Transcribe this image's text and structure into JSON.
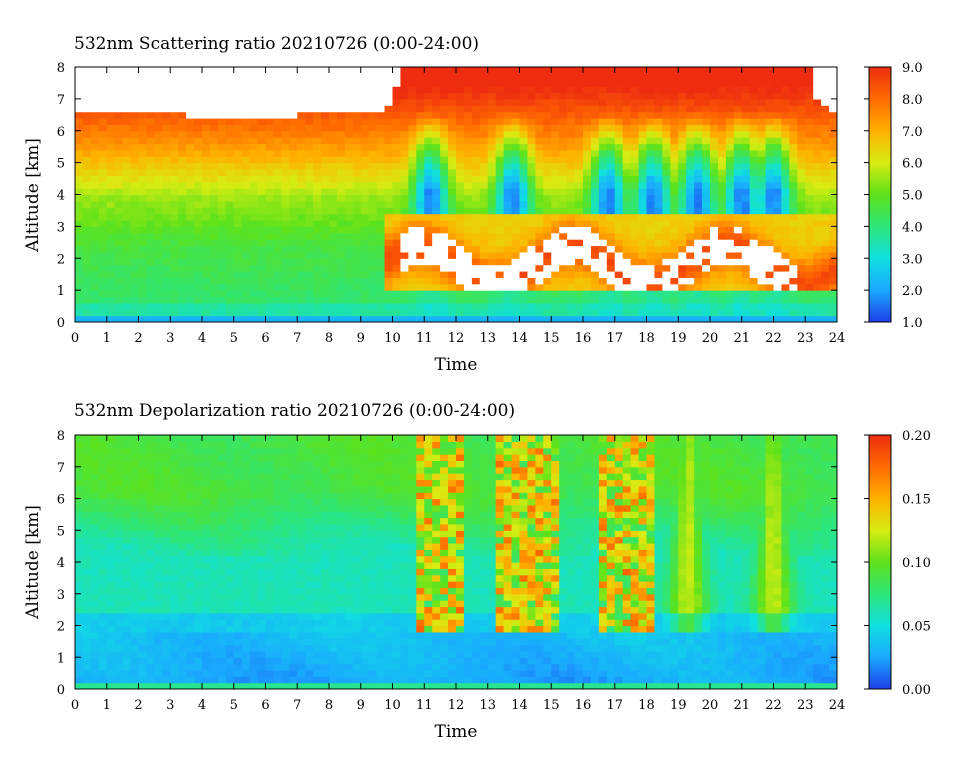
{
  "chart_data": [
    {
      "type": "heatmap",
      "title": "532nm Scattering ratio  20210726 (0:00-24:00)",
      "xlabel": "Time",
      "ylabel": "Altitude [km]",
      "xlim": [
        0,
        24
      ],
      "ylim": [
        0,
        8
      ],
      "x_ticks": [
        "0",
        "1",
        "2",
        "3",
        "4",
        "5",
        "6",
        "7",
        "8",
        "9",
        "10",
        "11",
        "12",
        "13",
        "14",
        "15",
        "16",
        "17",
        "18",
        "19",
        "20",
        "21",
        "22",
        "23",
        "24"
      ],
      "y_ticks": [
        "0",
        "1",
        "2",
        "3",
        "4",
        "5",
        "6",
        "7",
        "8"
      ],
      "colorbar": {
        "min": 1.0,
        "max": 9.0,
        "ticks": [
          "1.0",
          "2.0",
          "3.0",
          "4.0",
          "5.0",
          "6.0",
          "7.0",
          "8.0",
          "9.0"
        ],
        "colors": [
          "#1d3fe8",
          "#1aa8ff",
          "#10e0e0",
          "#2ee67a",
          "#5ee21a",
          "#d8ec12",
          "#ffb000",
          "#ff6a00",
          "#ee2d10"
        ]
      },
      "features": {
        "aerosol_top_km": 6.5,
        "cloud_onset_time": 10.3,
        "low_cloud_base_km": 1.3,
        "low_cloud_top_km": 3.2,
        "precip_dips_time": [
          11.2,
          13.8,
          16.8,
          18.2,
          19.6,
          21.0,
          22.0
        ]
      }
    },
    {
      "type": "heatmap",
      "title": "532nm Depolarization ratio  20210726 (0:00-24:00)",
      "xlabel": "Time",
      "ylabel": "Altitude [km]",
      "xlim": [
        0,
        24
      ],
      "ylim": [
        0,
        8
      ],
      "x_ticks": [
        "0",
        "1",
        "2",
        "3",
        "4",
        "5",
        "6",
        "7",
        "8",
        "9",
        "10",
        "11",
        "12",
        "13",
        "14",
        "15",
        "16",
        "17",
        "18",
        "19",
        "20",
        "21",
        "22",
        "23",
        "24"
      ],
      "y_ticks": [
        "0",
        "1",
        "2",
        "3",
        "4",
        "5",
        "6",
        "7",
        "8"
      ],
      "colorbar": {
        "min": 0.0,
        "max": 0.2,
        "ticks": [
          "0.00",
          "0.05",
          "0.10",
          "0.15",
          "0.20"
        ],
        "colors": [
          "#1d3fe8",
          "#1aa8ff",
          "#10e0e0",
          "#2ee67a",
          "#5ee21a",
          "#d8ec12",
          "#ffb000",
          "#ff6a00",
          "#ee2d10"
        ]
      },
      "features": {
        "low_layer_top_km": 4.2,
        "high_depol_time_bands": [
          [
            10.8,
            12.3
          ],
          [
            13.2,
            15.2
          ],
          [
            16.5,
            18.3
          ]
        ],
        "fall_streaks_time": [
          19.3,
          22.0
        ]
      }
    }
  ]
}
